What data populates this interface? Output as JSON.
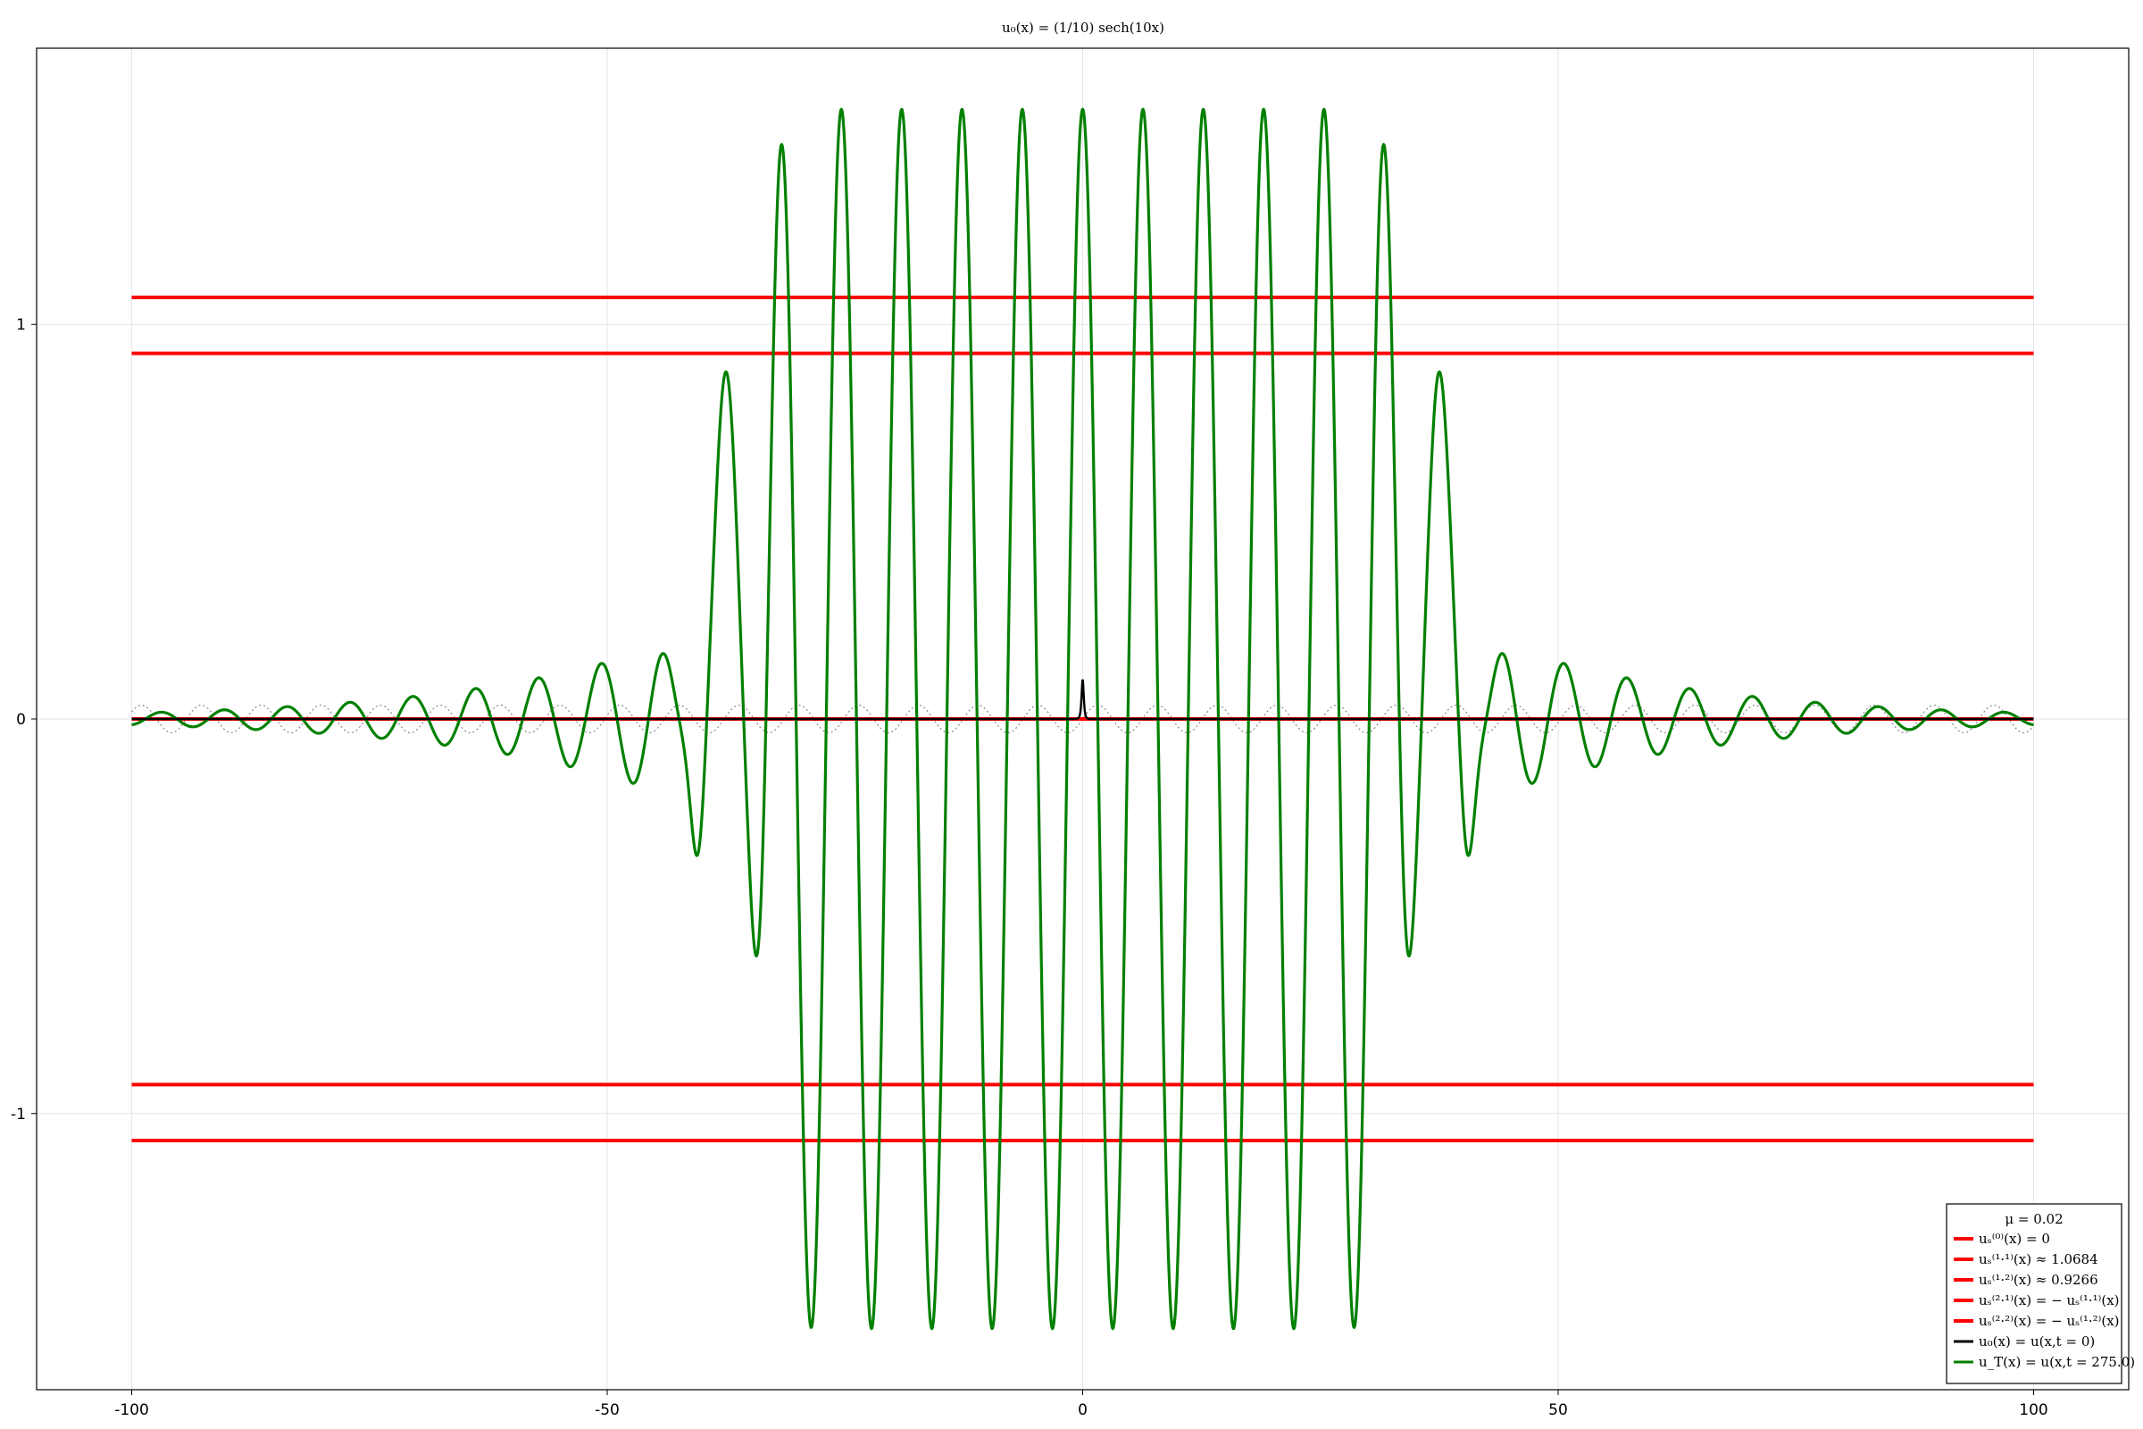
{
  "chart_data": {
    "type": "line",
    "title": "u₀(x) = (1/10) sech(10x)",
    "xlabel": "",
    "ylabel": "",
    "xlim": [
      -110,
      110
    ],
    "ylim": [
      -1.7,
      1.7
    ],
    "xticks": [
      -100,
      -50,
      0,
      50,
      100
    ],
    "xtick_labels": [
      "-100",
      "-50",
      "0",
      "50",
      "100"
    ],
    "yticks": [
      -1,
      0,
      1
    ],
    "ytick_labels": [
      "-1",
      "0",
      "1"
    ],
    "grid": true,
    "legend_placement": "bottom-right",
    "legend_title": "μ = 0.02",
    "series": [
      {
        "name": "uₛ⁽⁰⁾(x) = 0",
        "color": "#ff0000",
        "kind": "hline",
        "y": 0
      },
      {
        "name": "uₛ⁽¹·¹⁾(x) ≈ 1.0684",
        "color": "#ff0000",
        "kind": "hline",
        "y": 1.0684
      },
      {
        "name": "uₛ⁽¹·²⁾(x) ≈ 0.9266",
        "color": "#ff0000",
        "kind": "hline",
        "y": 0.9266
      },
      {
        "name": "uₛ⁽²·¹⁾(x) = − uₛ⁽¹·¹⁾(x)",
        "color": "#ff0000",
        "kind": "hline",
        "y": -1.0684
      },
      {
        "name": "uₛ⁽²·²⁾(x) = − uₛ⁽¹·²⁾(x)",
        "color": "#ff0000",
        "kind": "hline",
        "y": -0.9266
      },
      {
        "name": "u₀(x) = u(x,t = 0)",
        "color": "#000000",
        "kind": "function",
        "formula": "0.1*sech(10x)"
      },
      {
        "name": "u_T(x) = u(x,t = 275.0)",
        "color": "#008000",
        "kind": "wave",
        "core_amplitude": 1.545,
        "core_extent": [
          -33,
          33
        ],
        "wavenumber": 0.9905,
        "edge_peaks": [
          [
            -37.5,
            0.87
          ],
          [
            37.5,
            0.87
          ],
          [
            -40.5,
            -0.38
          ],
          [
            40.5,
            -0.38
          ]
        ],
        "tail_peaks": [
          [
            44,
            0.19
          ],
          [
            47,
            -0.14
          ],
          [
            50.3,
            0.11
          ],
          [
            53.2,
            -0.1
          ],
          [
            56.5,
            0.08
          ],
          [
            100,
            0.02
          ]
        ]
      },
      {
        "name": "",
        "color": "#888888",
        "kind": "dotted-wave",
        "amplitude": 0.035,
        "extent": [
          -100,
          100
        ]
      }
    ]
  }
}
